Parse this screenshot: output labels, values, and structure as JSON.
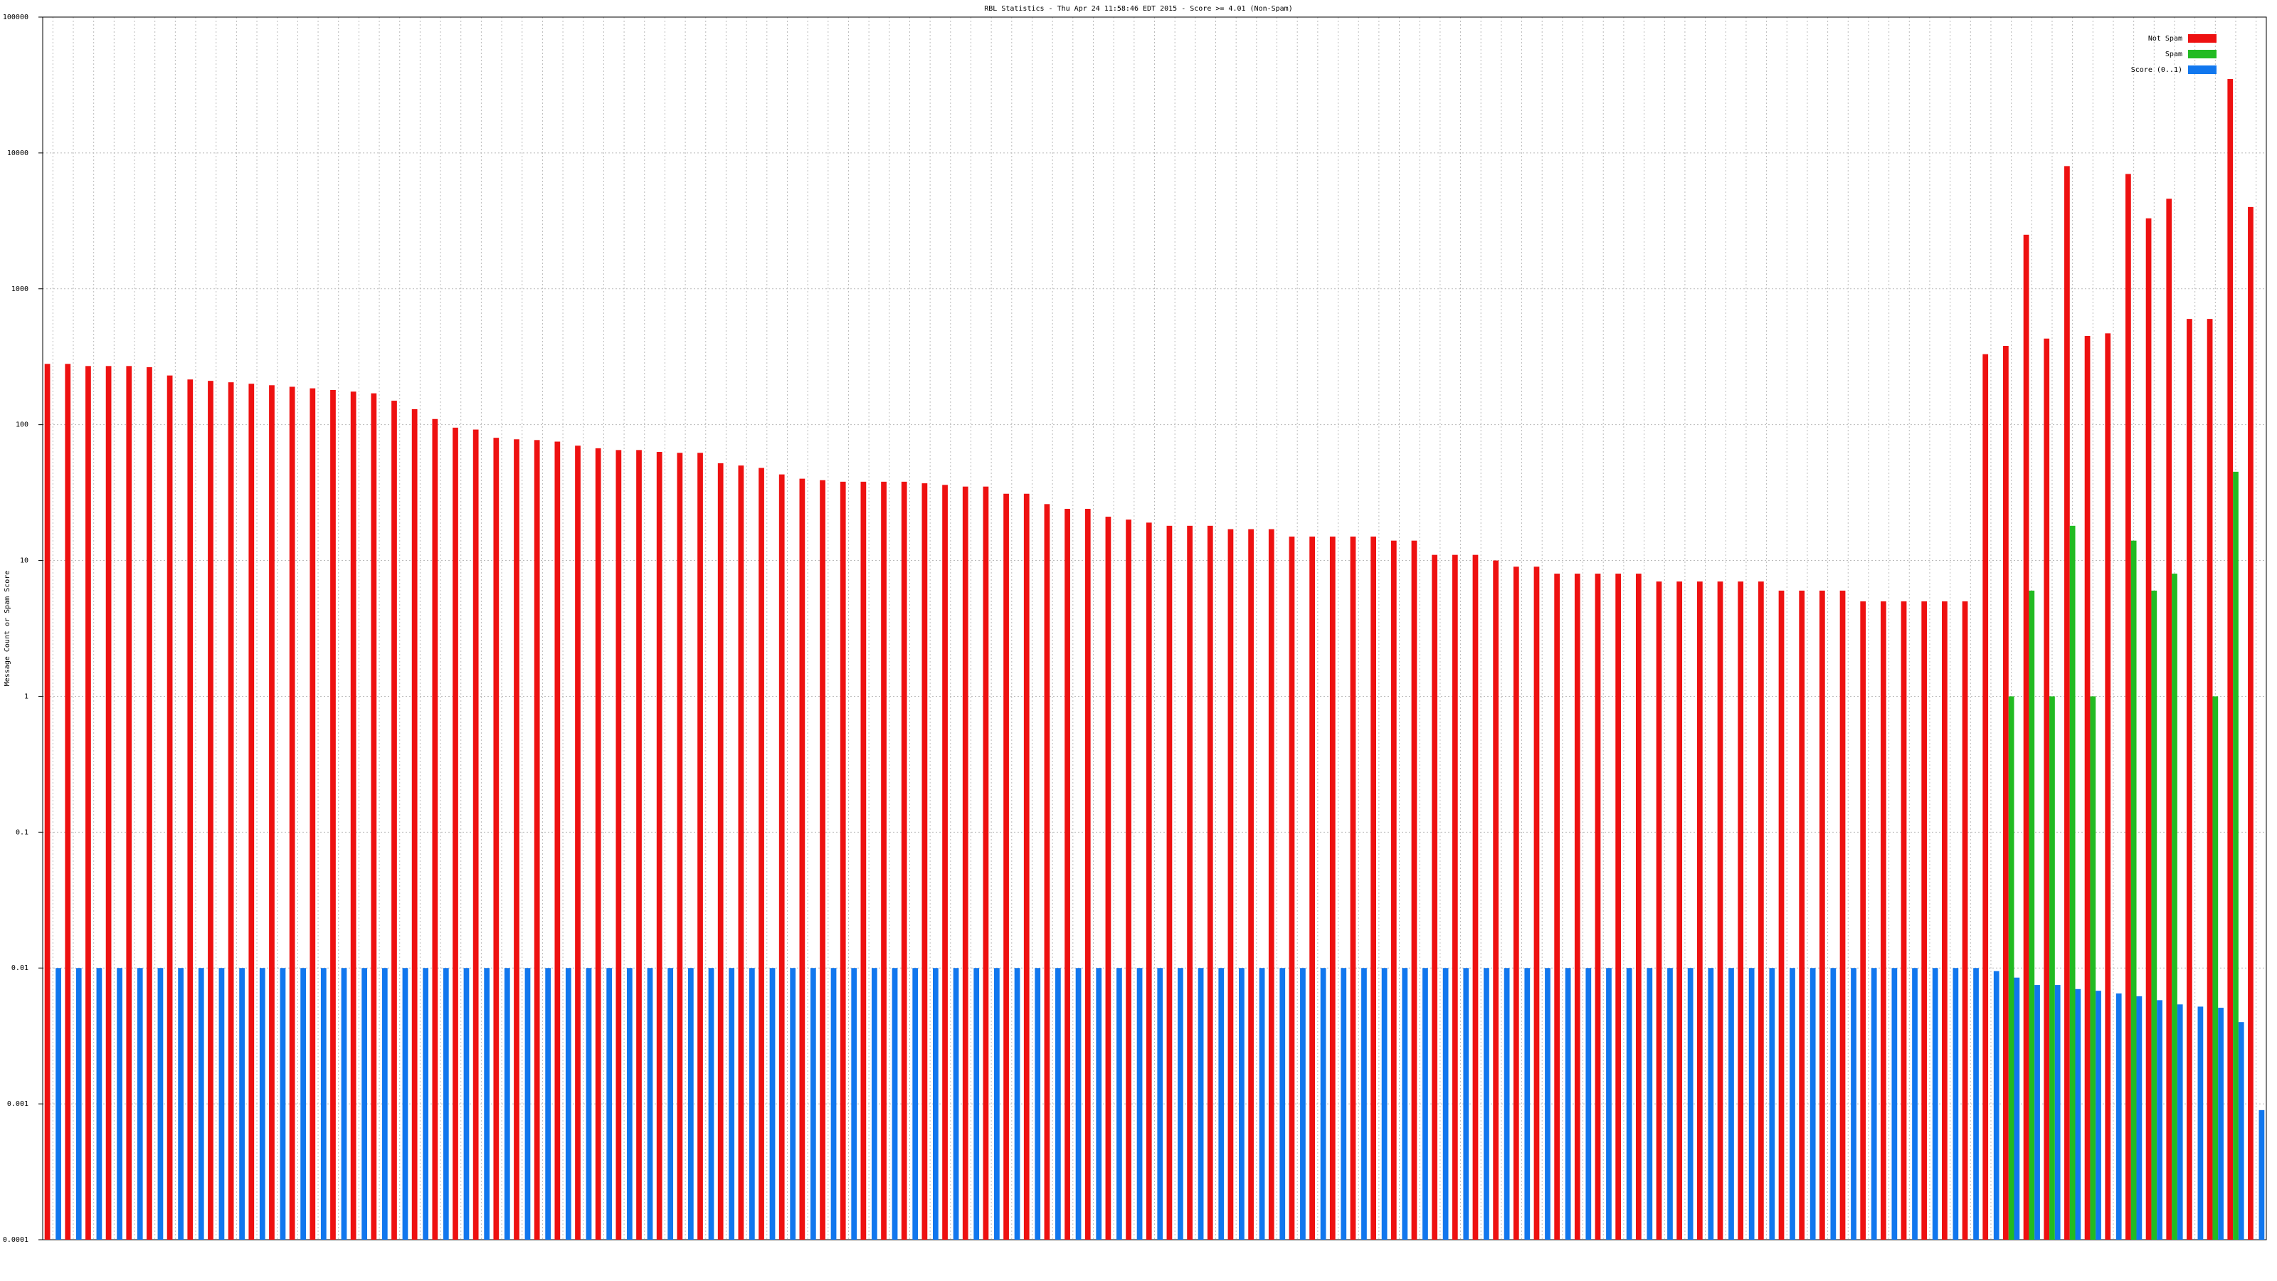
{
  "chart_data": {
    "type": "bar",
    "title": "RBL Statistics - Thu Apr 24 11:58:46 EDT 2015 - Score >= 4.01 (Non-Spam)",
    "ylabel": "Message Count or Spam Score",
    "log_scale": true,
    "grid": true,
    "legend": "upper right",
    "ylim": [
      0.0001,
      100000
    ],
    "yticks": [
      0.0001,
      0.001,
      0.01,
      0.1,
      1,
      10,
      100,
      1000,
      10000,
      100000
    ],
    "categories": [
      null,
      null,
      null,
      null,
      null,
      null,
      null,
      null,
      null,
      null,
      null,
      null,
      null,
      null,
      null,
      null,
      null,
      null,
      null,
      null,
      null,
      null,
      null,
      null,
      null,
      null,
      null,
      null,
      null,
      null,
      null,
      null,
      null,
      null,
      null,
      null,
      null,
      null,
      null,
      null,
      null,
      null,
      null,
      null,
      null,
      null,
      null,
      null,
      null,
      null,
      null,
      null,
      null,
      null,
      null,
      null,
      null,
      null,
      null,
      null,
      null,
      null,
      null,
      null,
      null,
      null,
      null,
      null,
      null,
      null,
      null,
      null,
      null,
      null,
      null,
      null,
      null,
      null,
      null,
      null,
      null,
      null,
      null,
      null,
      null,
      null,
      null,
      null,
      null,
      null,
      null,
      null,
      null,
      null,
      null,
      null,
      null,
      null,
      null,
      null,
      null,
      null,
      null,
      null,
      null,
      null,
      null,
      null,
      null
    ],
    "series": [
      {
        "name": "Not Spam",
        "color": "#ee1111",
        "values": [
          280,
          280,
          270,
          270,
          270,
          265,
          230,
          215,
          210,
          205,
          200,
          195,
          190,
          185,
          180,
          175,
          170,
          150,
          130,
          110,
          95,
          92,
          80,
          78,
          77,
          75,
          70,
          67,
          65,
          65,
          63,
          62,
          62,
          52,
          50,
          48,
          43,
          40,
          39,
          38,
          38,
          38,
          38,
          37,
          36,
          35,
          35,
          31,
          31,
          26,
          24,
          24,
          21,
          20,
          19,
          18,
          18,
          18,
          17,
          17,
          17,
          15,
          15,
          15,
          15,
          15,
          14,
          14,
          11,
          11,
          11,
          10,
          9,
          9,
          8,
          8,
          8,
          8,
          8,
          7,
          7,
          7,
          7,
          7,
          7,
          6,
          6,
          6,
          6,
          5,
          5,
          5,
          5,
          5,
          5,
          330,
          380,
          2500,
          430,
          8000,
          450,
          470,
          7000,
          3300,
          4600,
          600,
          600,
          35000,
          4000
        ]
      },
      {
        "name": "Spam",
        "color": "#22bb22",
        "values": [
          null,
          null,
          null,
          null,
          null,
          null,
          null,
          null,
          null,
          null,
          null,
          null,
          null,
          null,
          null,
          null,
          null,
          null,
          null,
          null,
          null,
          null,
          null,
          null,
          null,
          null,
          null,
          null,
          null,
          null,
          null,
          null,
          null,
          null,
          null,
          null,
          null,
          null,
          null,
          null,
          null,
          null,
          null,
          null,
          null,
          null,
          null,
          null,
          null,
          null,
          null,
          null,
          null,
          null,
          null,
          null,
          null,
          null,
          null,
          null,
          null,
          null,
          null,
          null,
          null,
          null,
          null,
          null,
          null,
          null,
          null,
          null,
          null,
          null,
          null,
          null,
          null,
          null,
          null,
          null,
          null,
          null,
          null,
          null,
          null,
          null,
          null,
          null,
          null,
          null,
          null,
          null,
          null,
          null,
          null,
          null,
          1,
          6,
          1,
          18,
          1,
          null,
          14,
          6,
          8,
          null,
          1,
          45,
          null
        ]
      },
      {
        "name": "Score (0..1)",
        "color": "#1177ee",
        "values": [
          0.01,
          0.01,
          0.01,
          0.01,
          0.01,
          0.01,
          0.01,
          0.01,
          0.01,
          0.01,
          0.01,
          0.01,
          0.01,
          0.01,
          0.01,
          0.01,
          0.01,
          0.01,
          0.01,
          0.01,
          0.01,
          0.01,
          0.01,
          0.01,
          0.01,
          0.01,
          0.01,
          0.01,
          0.01,
          0.01,
          0.01,
          0.01,
          0.01,
          0.01,
          0.01,
          0.01,
          0.01,
          0.01,
          0.01,
          0.01,
          0.01,
          0.01,
          0.01,
          0.01,
          0.01,
          0.01,
          0.01,
          0.01,
          0.01,
          0.01,
          0.01,
          0.01,
          0.01,
          0.01,
          0.01,
          0.01,
          0.01,
          0.01,
          0.01,
          0.01,
          0.01,
          0.01,
          0.01,
          0.01,
          0.01,
          0.01,
          0.01,
          0.01,
          0.01,
          0.01,
          0.01,
          0.01,
          0.01,
          0.01,
          0.01,
          0.01,
          0.01,
          0.01,
          0.01,
          0.01,
          0.01,
          0.01,
          0.01,
          0.01,
          0.01,
          0.01,
          0.01,
          0.01,
          0.01,
          0.01,
          0.01,
          0.01,
          0.01,
          0.01,
          0.01,
          0.0095,
          0.0085,
          0.0075,
          0.0075,
          0.007,
          0.0068,
          0.0065,
          0.0062,
          0.0058,
          0.0054,
          0.0052,
          0.0051,
          0.004,
          0.0009
        ]
      }
    ]
  }
}
